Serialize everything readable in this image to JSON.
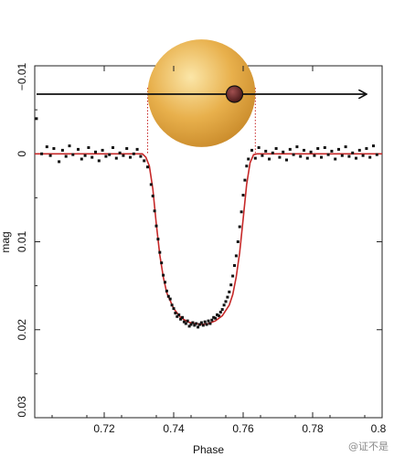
{
  "chart_data": {
    "type": "scatter",
    "title": "",
    "xlabel": "Phase",
    "ylabel": "mag",
    "xlim": [
      0.7,
      0.8
    ],
    "ylim": [
      -0.01,
      0.03
    ],
    "y_inverted": true,
    "grid": false,
    "x_tick_labels": [
      "0.72",
      "0.74",
      "0.76",
      "0.78",
      "0.8"
    ],
    "x_tick_values": [
      0.72,
      0.74,
      0.76,
      0.78,
      0.8
    ],
    "y_tick_labels": [
      "−0.01",
      "0",
      "0.01",
      "0.02",
      "0.03"
    ],
    "y_tick_values": [
      -0.01,
      0,
      0.01,
      0.02,
      0.03
    ],
    "colors": {
      "points": "#111111",
      "model_line": "#c62828",
      "star": "#e8b04c",
      "planet": "#6e2a2a"
    },
    "series": [
      {
        "kind": "observations",
        "points": [
          [
            0.7005,
            -0.004
          ],
          [
            0.702,
            0.0
          ],
          [
            0.7035,
            -0.0008
          ],
          [
            0.7045,
            0.0002
          ],
          [
            0.7055,
            -0.0006
          ],
          [
            0.707,
            0.0009
          ],
          [
            0.708,
            -0.0004
          ],
          [
            0.709,
            0.0003
          ],
          [
            0.71,
            -0.0009
          ],
          [
            0.711,
            0.0001
          ],
          [
            0.7125,
            -0.0005
          ],
          [
            0.7135,
            0.0006
          ],
          [
            0.7145,
            0.0002
          ],
          [
            0.7155,
            -0.0007
          ],
          [
            0.7165,
            0.0004
          ],
          [
            0.7175,
            -0.0002
          ],
          [
            0.7185,
            0.0008
          ],
          [
            0.7195,
            -0.0004
          ],
          [
            0.7205,
            0.0003
          ],
          [
            0.7215,
            0.0001
          ],
          [
            0.7225,
            -0.0007
          ],
          [
            0.7235,
            0.0005
          ],
          [
            0.7245,
            -0.0001
          ],
          [
            0.7255,
            0.0002
          ],
          [
            0.7265,
            -0.0006
          ],
          [
            0.7275,
            0.0004
          ],
          [
            0.7285,
            0.0
          ],
          [
            0.7295,
            -0.0005
          ],
          [
            0.7305,
            0.0003
          ],
          [
            0.7315,
            0.0008
          ],
          [
            0.7325,
            0.0015
          ],
          [
            0.7335,
            0.0035
          ],
          [
            0.734,
            0.0048
          ],
          [
            0.7345,
            0.0065
          ],
          [
            0.735,
            0.0082
          ],
          [
            0.7355,
            0.0097
          ],
          [
            0.736,
            0.0112
          ],
          [
            0.7365,
            0.0124
          ],
          [
            0.737,
            0.0138
          ],
          [
            0.7375,
            0.0146
          ],
          [
            0.738,
            0.0156
          ],
          [
            0.7385,
            0.0162
          ],
          [
            0.739,
            0.0165
          ],
          [
            0.7395,
            0.0172
          ],
          [
            0.74,
            0.0176
          ],
          [
            0.7405,
            0.0181
          ],
          [
            0.741,
            0.0185
          ],
          [
            0.7415,
            0.0183
          ],
          [
            0.742,
            0.0188
          ],
          [
            0.7425,
            0.0186
          ],
          [
            0.743,
            0.0191
          ],
          [
            0.7435,
            0.0193
          ],
          [
            0.744,
            0.019
          ],
          [
            0.7445,
            0.0196
          ],
          [
            0.745,
            0.0194
          ],
          [
            0.7455,
            0.0192
          ],
          [
            0.746,
            0.0195
          ],
          [
            0.7465,
            0.0193
          ],
          [
            0.747,
            0.0197
          ],
          [
            0.7475,
            0.0194
          ],
          [
            0.748,
            0.0192
          ],
          [
            0.7485,
            0.0195
          ],
          [
            0.749,
            0.0191
          ],
          [
            0.7495,
            0.0194
          ],
          [
            0.75,
            0.019
          ],
          [
            0.7505,
            0.0193
          ],
          [
            0.751,
            0.0189
          ],
          [
            0.7515,
            0.0186
          ],
          [
            0.752,
            0.0187
          ],
          [
            0.7525,
            0.0183
          ],
          [
            0.753,
            0.0184
          ],
          [
            0.7535,
            0.018
          ],
          [
            0.754,
            0.0177
          ],
          [
            0.7545,
            0.0172
          ],
          [
            0.755,
            0.0168
          ],
          [
            0.7555,
            0.0163
          ],
          [
            0.756,
            0.0157
          ],
          [
            0.7565,
            0.0149
          ],
          [
            0.757,
            0.0139
          ],
          [
            0.7575,
            0.0127
          ],
          [
            0.758,
            0.0116
          ],
          [
            0.7585,
            0.01
          ],
          [
            0.759,
            0.0083
          ],
          [
            0.7595,
            0.0066
          ],
          [
            0.76,
            0.0047
          ],
          [
            0.7605,
            0.003
          ],
          [
            0.761,
            0.0014
          ],
          [
            0.7615,
            0.0006
          ],
          [
            0.7625,
            -0.0004
          ],
          [
            0.7635,
            0.0005
          ],
          [
            0.7645,
            -0.0007
          ],
          [
            0.7655,
            0.0002
          ],
          [
            0.7665,
            -0.0003
          ],
          [
            0.7675,
            0.0006
          ],
          [
            0.7685,
            -0.0001
          ],
          [
            0.7695,
            -0.0006
          ],
          [
            0.7705,
            0.0004
          ],
          [
            0.7715,
            -0.0002
          ],
          [
            0.7725,
            0.0007
          ],
          [
            0.7735,
            -0.0005
          ],
          [
            0.7745,
            0.0001
          ],
          [
            0.7755,
            -0.0008
          ],
          [
            0.7765,
            0.0003
          ],
          [
            0.7775,
            -0.0004
          ],
          [
            0.7785,
            0.0005
          ],
          [
            0.7795,
            -0.0002
          ],
          [
            0.7805,
            0.0002
          ],
          [
            0.7815,
            -0.0006
          ],
          [
            0.7825,
            0.0004
          ],
          [
            0.7835,
            -0.0007
          ],
          [
            0.7845,
            0.0001
          ],
          [
            0.7855,
            -0.0003
          ],
          [
            0.7865,
            0.0006
          ],
          [
            0.7875,
            -0.0005
          ],
          [
            0.7885,
            0.0002
          ],
          [
            0.7895,
            -0.0008
          ],
          [
            0.7905,
            0.0003
          ],
          [
            0.7915,
            -0.0001
          ],
          [
            0.7925,
            0.0005
          ],
          [
            0.7935,
            -0.0004
          ],
          [
            0.7945,
            0.0002
          ],
          [
            0.7955,
            -0.0006
          ],
          [
            0.7965,
            0.0004
          ],
          [
            0.7975,
            -0.0009
          ],
          [
            0.7985,
            0.0001
          ]
        ]
      },
      {
        "kind": "model",
        "points": [
          [
            0.7,
            0.0
          ],
          [
            0.731,
            0.0
          ],
          [
            0.732,
            0.0004
          ],
          [
            0.733,
            0.0014
          ],
          [
            0.734,
            0.004
          ],
          [
            0.735,
            0.008
          ],
          [
            0.736,
            0.0115
          ],
          [
            0.737,
            0.014
          ],
          [
            0.738,
            0.0158
          ],
          [
            0.74,
            0.0176
          ],
          [
            0.742,
            0.0186
          ],
          [
            0.744,
            0.0191
          ],
          [
            0.746,
            0.0193
          ],
          [
            0.748,
            0.0194
          ],
          [
            0.75,
            0.0193
          ],
          [
            0.752,
            0.019
          ],
          [
            0.754,
            0.0184
          ],
          [
            0.756,
            0.0172
          ],
          [
            0.757,
            0.016
          ],
          [
            0.758,
            0.014
          ],
          [
            0.759,
            0.0112
          ],
          [
            0.76,
            0.0074
          ],
          [
            0.761,
            0.0035
          ],
          [
            0.762,
            0.001
          ],
          [
            0.763,
            0.0001
          ],
          [
            0.764,
            0.0
          ],
          [
            0.8,
            0.0
          ]
        ]
      }
    ],
    "illustration": {
      "star_center_phase": 0.748,
      "star_edge_phases": [
        0.7325,
        0.7635
      ],
      "planet_phase": 0.7575,
      "arrow_direction": "left-to-right"
    }
  },
  "watermark": "@证不是"
}
